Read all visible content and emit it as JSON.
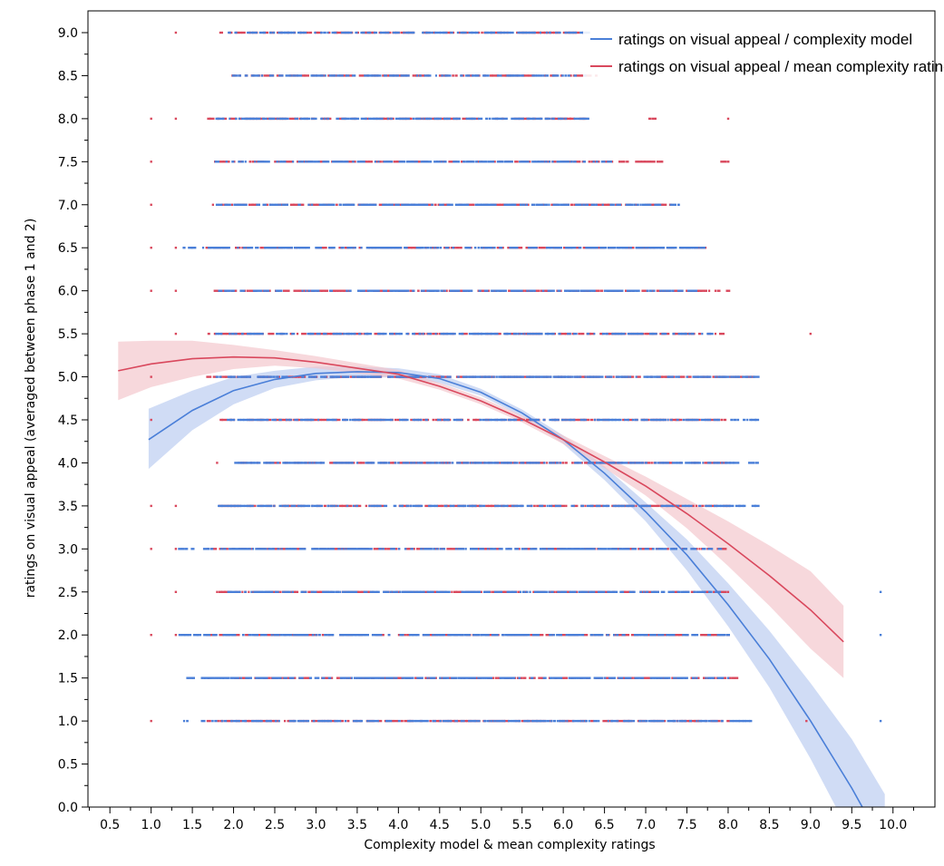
{
  "chart_data": {
    "type": "scatter",
    "xlabel": "Complexity model & mean complexity ratings",
    "ylabel": "ratings on visual appeal (averaged between phase 1 and 2)",
    "xlim": [
      0.25,
      10.6
    ],
    "ylim": [
      0.0,
      9.2
    ],
    "x_ticks": [
      "0.5",
      "1.0",
      "1.5",
      "2.0",
      "2.5",
      "3.0",
      "3.5",
      "4.0",
      "4.5",
      "5.0",
      "5.5",
      "6.0",
      "6.5",
      "7.0",
      "7.5",
      "8.0",
      "8.5",
      "9.0",
      "9.5",
      "10.0"
    ],
    "y_ticks": [
      "0.0",
      "0.5",
      "1.0",
      "1.5",
      "2.0",
      "2.5",
      "3.0",
      "3.5",
      "4.0",
      "4.5",
      "5.0",
      "5.5",
      "6.0",
      "6.5",
      "7.0",
      "7.5",
      "8.0",
      "8.5",
      "9.0"
    ],
    "grid": false,
    "legend_position": "top-right",
    "colors": {
      "complexity_model": "#4a7fd8",
      "mean_ratings": "#d9485d",
      "complexity_model_band": "#b7c9ef",
      "mean_ratings_band": "#f3c3c9"
    },
    "series": [
      {
        "name": "ratings on visual appeal / complexity model",
        "fit": {
          "x": [
            0.97,
            1.5,
            2.0,
            2.5,
            3.0,
            3.5,
            4.0,
            4.5,
            5.0,
            5.5,
            6.0,
            6.5,
            7.0,
            7.5,
            8.0,
            8.5,
            9.0,
            9.5,
            9.9
          ],
          "y": [
            4.27,
            4.61,
            4.84,
            4.97,
            5.04,
            5.06,
            5.05,
            4.98,
            4.82,
            4.58,
            4.27,
            3.88,
            3.43,
            2.93,
            2.35,
            1.72,
            1.0,
            0.22,
            -0.47
          ],
          "ci_lower": [
            3.93,
            4.38,
            4.68,
            4.87,
            4.96,
            5.0,
            4.99,
            4.93,
            4.78,
            4.54,
            4.22,
            3.8,
            3.32,
            2.75,
            2.1,
            1.39,
            0.56,
            -0.35,
            -1.1
          ],
          "ci_upper": [
            4.63,
            4.84,
            5.0,
            5.07,
            5.12,
            5.12,
            5.1,
            5.03,
            4.86,
            4.62,
            4.32,
            3.96,
            3.54,
            3.11,
            2.6,
            2.05,
            1.44,
            0.79,
            0.15
          ]
        },
        "point_x_ranges": {
          "9.0": [
            [
              1.95,
              6.3
            ]
          ],
          "8.5": [
            [
              2.0,
              6.3
            ]
          ],
          "8.0": [
            [
              1.8,
              6.3
            ]
          ],
          "7.5": [
            [
              1.8,
              6.6
            ]
          ],
          "7.0": [
            [
              1.8,
              7.4
            ]
          ],
          "6.5": [
            [
              1.4,
              7.7
            ]
          ],
          "6.0": [
            [
              1.8,
              7.6
            ]
          ],
          "5.5": [
            [
              1.8,
              7.8
            ]
          ],
          "5.0": [
            [
              1.8,
              8.35
            ]
          ],
          "4.5": [
            [
              1.95,
              8.35
            ]
          ],
          "4.0": [
            [
              2.0,
              8.35
            ]
          ],
          "3.5": [
            [
              1.8,
              8.35
            ]
          ],
          "3.0": [
            [
              1.35,
              7.9
            ]
          ],
          "2.5": [
            [
              1.95,
              7.9
            ],
            [
              9.85,
              9.85
            ]
          ],
          "2.0": [
            [
              1.35,
              8.0
            ],
            [
              9.85,
              9.85
            ]
          ],
          "1.5": [
            [
              1.4,
              8.0
            ]
          ],
          "1.0": [
            [
              1.4,
              8.35
            ],
            [
              9.85,
              9.85
            ]
          ]
        }
      },
      {
        "name": "ratings on visual appeal / mean complexity ratings",
        "fit": {
          "x": [
            0.6,
            1.0,
            1.5,
            2.0,
            2.5,
            3.0,
            3.5,
            4.0,
            4.5,
            5.0,
            5.5,
            6.0,
            6.5,
            7.0,
            7.5,
            8.0,
            8.5,
            9.0,
            9.4
          ],
          "y": [
            5.07,
            5.15,
            5.21,
            5.23,
            5.22,
            5.17,
            5.1,
            5.03,
            4.89,
            4.72,
            4.51,
            4.27,
            4.01,
            3.73,
            3.41,
            3.06,
            2.69,
            2.29,
            1.92
          ],
          "ci_lower": [
            4.73,
            4.88,
            5.0,
            5.09,
            5.13,
            5.1,
            5.04,
            4.98,
            4.85,
            4.68,
            4.47,
            4.22,
            3.94,
            3.62,
            3.24,
            2.8,
            2.34,
            1.84,
            1.5
          ],
          "ci_upper": [
            5.41,
            5.42,
            5.42,
            5.37,
            5.31,
            5.24,
            5.16,
            5.08,
            4.93,
            4.76,
            4.55,
            4.32,
            4.08,
            3.84,
            3.58,
            3.32,
            3.04,
            2.74,
            2.34
          ]
        },
        "point_x_ranges": {
          "9.0": [
            [
              1.3,
              1.3
            ],
            [
              1.85,
              6.25
            ]
          ],
          "8.5": [
            [
              2.0,
              6.4
            ]
          ],
          "8.0": [
            [
              1.0,
              1.0
            ],
            [
              1.3,
              1.3
            ],
            [
              1.7,
              6.3
            ],
            [
              7.05,
              7.1
            ],
            [
              8.0,
              8.0
            ]
          ],
          "7.5": [
            [
              1.0,
              1.0
            ],
            [
              1.7,
              7.2
            ],
            [
              7.9,
              8.0
            ]
          ],
          "7.0": [
            [
              1.0,
              1.0
            ],
            [
              1.75,
              7.3
            ]
          ],
          "6.5": [
            [
              1.0,
              1.0
            ],
            [
              1.3,
              1.3
            ],
            [
              1.65,
              7.75
            ]
          ],
          "6.0": [
            [
              1.0,
              1.0
            ],
            [
              1.3,
              1.3
            ],
            [
              1.75,
              8.0
            ]
          ],
          "5.5": [
            [
              1.3,
              1.3
            ],
            [
              1.7,
              8.0
            ],
            [
              9.0,
              9.0
            ]
          ],
          "5.0": [
            [
              1.0,
              1.0
            ],
            [
              1.7,
              8.3
            ]
          ],
          "4.5": [
            [
              1.0,
              1.0
            ],
            [
              1.85,
              8.0
            ]
          ],
          "4.0": [
            [
              1.8,
              1.8
            ],
            [
              2.1,
              8.0
            ]
          ],
          "3.5": [
            [
              1.0,
              1.0
            ],
            [
              1.3,
              1.3
            ],
            [
              1.8,
              8.0
            ]
          ],
          "3.0": [
            [
              1.0,
              1.0
            ],
            [
              1.3,
              1.3
            ],
            [
              1.65,
              8.0
            ]
          ],
          "2.5": [
            [
              1.3,
              1.3
            ],
            [
              1.8,
              8.0
            ]
          ],
          "2.0": [
            [
              1.0,
              1.0
            ],
            [
              1.3,
              1.3
            ],
            [
              1.7,
              8.0
            ]
          ],
          "1.5": [
            [
              1.7,
              1.7
            ],
            [
              2.0,
              8.1
            ]
          ],
          "1.0": [
            [
              1.0,
              1.0
            ],
            [
              1.7,
              8.0
            ],
            [
              8.95,
              8.95
            ]
          ]
        }
      }
    ]
  }
}
